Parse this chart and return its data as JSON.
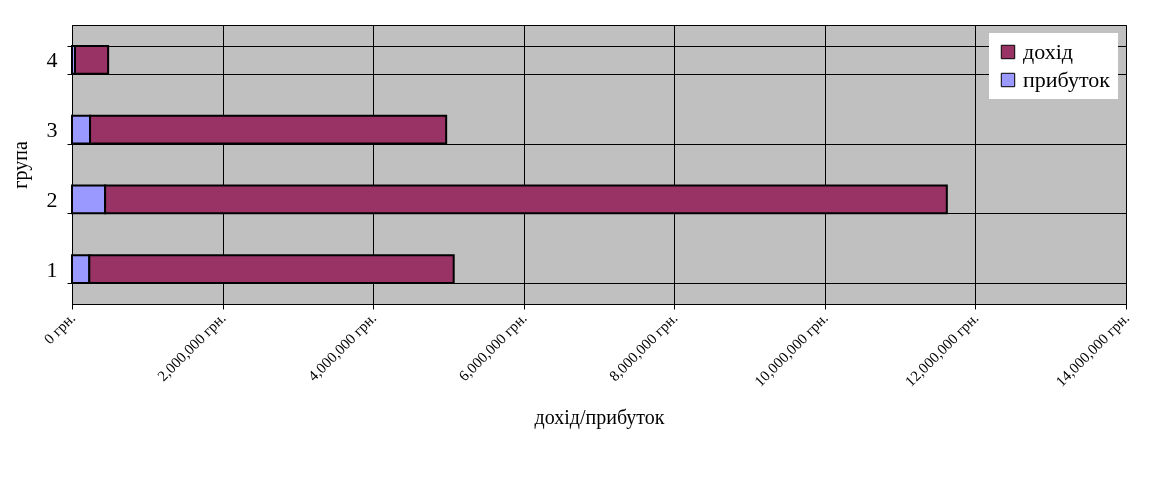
{
  "chart_data": {
    "type": "bar",
    "orientation": "horizontal",
    "stacked": true,
    "xlabel": "дохід/прибуток",
    "ylabel": "група",
    "categories": [
      "4",
      "3",
      "2",
      "1"
    ],
    "series": [
      {
        "name": "прибуток",
        "color": "#9999ff",
        "values": [
          40000,
          240000,
          440000,
          230000
        ]
      },
      {
        "name": "дохід",
        "color": "#993366",
        "values": [
          440000,
          4730000,
          11180000,
          4840000
        ]
      }
    ],
    "xlim": [
      0,
      14000000
    ],
    "xticks": [
      {
        "value": 0,
        "label": "0 грн."
      },
      {
        "value": 2000000,
        "label": "2,000,000 грн."
      },
      {
        "value": 4000000,
        "label": "4,000,000 грн."
      },
      {
        "value": 6000000,
        "label": "6,000,000 грн."
      },
      {
        "value": 8000000,
        "label": "8,000,000 грн."
      },
      {
        "value": 10000000,
        "label": "10,000,000 грн."
      },
      {
        "value": 12000000,
        "label": "12,000,000 грн."
      },
      {
        "value": 14000000,
        "label": "14,000,000 грн."
      }
    ],
    "grid": true,
    "legend": "top right"
  }
}
